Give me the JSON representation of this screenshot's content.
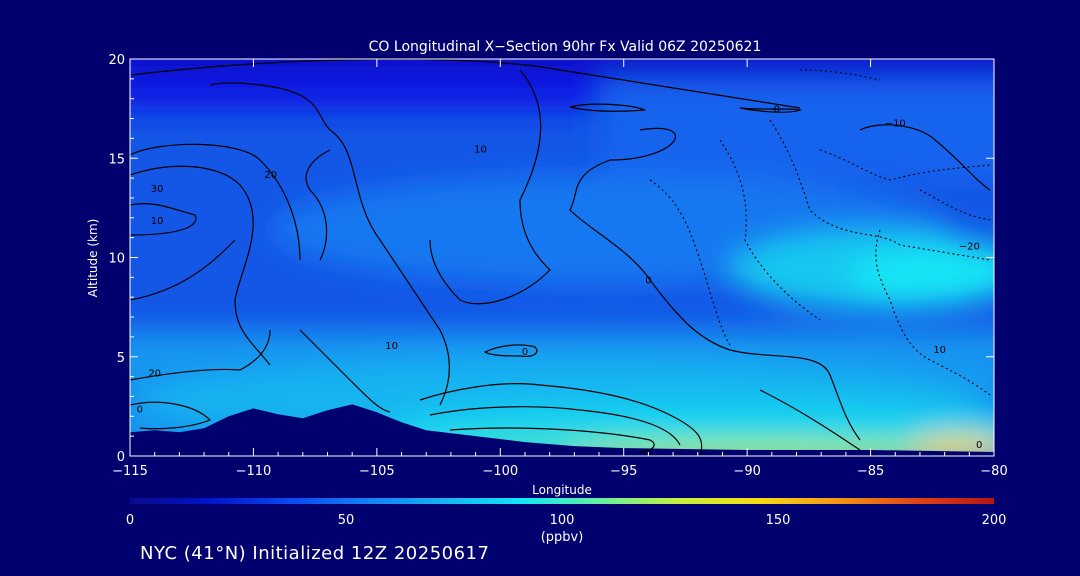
{
  "footer": "NYC (41°N) Initialized 12Z 20250617",
  "chart_data": {
    "type": "heatmap",
    "title": "CO Longitudinal X−Section 90hr  Fx Valid 06Z 20250621",
    "xlabel": "Longitude",
    "ylabel": "Altitude (km)",
    "xlim": [
      -115,
      -80
    ],
    "ylim": [
      0,
      20
    ],
    "xticks": [
      -115,
      -110,
      -105,
      -100,
      -95,
      -90,
      -85,
      -80
    ],
    "xtick_labels": [
      "−115",
      "−110",
      "−105",
      "−100",
      "−95",
      "−90",
      "−85",
      "−80"
    ],
    "yticks": [
      0,
      5,
      10,
      15,
      20
    ],
    "ytick_labels": [
      "0",
      "5",
      "10",
      "15",
      "20"
    ],
    "colorbar": {
      "min": 0,
      "max": 200,
      "ticks": [
        0,
        50,
        100,
        150,
        200
      ],
      "tick_labels": [
        "0",
        "50",
        "100",
        "150",
        "200"
      ],
      "unit": "(ppbv)",
      "colors": [
        "#0a0a8c",
        "#0014c8",
        "#0a46f0",
        "#147ff5",
        "#14b4f5",
        "#14e6f5",
        "#64f0a0",
        "#c8f03c",
        "#f5dc14",
        "#f59614",
        "#e14614",
        "#b41414"
      ]
    },
    "contour_labels": [
      {
        "text": "0",
        "x": -88.8,
        "y": 17.5
      },
      {
        "text": "−10",
        "x": -84,
        "y": 16.8
      },
      {
        "text": "10",
        "x": -100.8,
        "y": 15.5
      },
      {
        "text": "20",
        "x": -109.3,
        "y": 14.2
      },
      {
        "text": "30",
        "x": -113.9,
        "y": 13.5
      },
      {
        "text": "10",
        "x": -113.9,
        "y": 11.9
      },
      {
        "text": "−20",
        "x": -81,
        "y": 10.6
      },
      {
        "text": "0",
        "x": -94,
        "y": 8.9
      },
      {
        "text": "10",
        "x": -104.4,
        "y": 5.6
      },
      {
        "text": "10",
        "x": -82.2,
        "y": 5.4
      },
      {
        "text": "0",
        "x": -99,
        "y": 5.3
      },
      {
        "text": "20",
        "x": -114,
        "y": 4.2
      },
      {
        "text": "0",
        "x": -114.6,
        "y": 2.4
      },
      {
        "text": "0",
        "x": -80.6,
        "y": 0.6
      }
    ],
    "terrain": [
      [
        -115,
        1.2
      ],
      [
        -114,
        1.3
      ],
      [
        -113,
        1.2
      ],
      [
        -112,
        1.4
      ],
      [
        -111,
        2
      ],
      [
        -110,
        2.4
      ],
      [
        -109,
        2.1
      ],
      [
        -108,
        1.9
      ],
      [
        -107,
        2.3
      ],
      [
        -106,
        2.6
      ],
      [
        -105,
        2.2
      ],
      [
        -104,
        1.7
      ],
      [
        -103,
        1.3
      ],
      [
        -101,
        1.0
      ],
      [
        -99,
        0.7
      ],
      [
        -97,
        0.5
      ],
      [
        -95,
        0.4
      ],
      [
        -90,
        0.3
      ],
      [
        -85,
        0.3
      ],
      [
        -80,
        0.2
      ]
    ]
  }
}
